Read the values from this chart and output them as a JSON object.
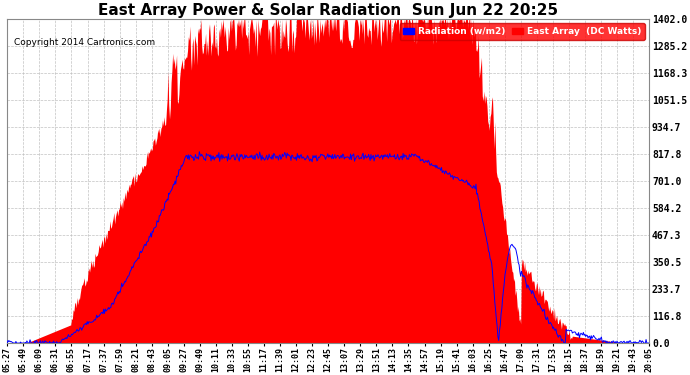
{
  "title": "East Array Power & Solar Radiation  Sun Jun 22 20:25",
  "copyright": "Copyright 2014 Cartronics.com",
  "legend_labels": [
    "Radiation (w/m2)",
    "East Array  (DC Watts)"
  ],
  "legend_colors": [
    "#0000ff",
    "#ff0000"
  ],
  "yticks": [
    0.0,
    116.8,
    233.7,
    350.5,
    467.3,
    584.2,
    701.0,
    817.8,
    934.7,
    1051.5,
    1168.3,
    1285.2,
    1402.0
  ],
  "ymax": 1402.0,
  "ymin": 0.0,
  "background_color": "#ffffff",
  "plot_bg_color": "#ffffff",
  "grid_color": "#bbbbbb",
  "red_fill_color": "#ff0000",
  "blue_line_color": "#0000ff",
  "title_fontsize": 11,
  "n_points": 820,
  "xtick_labels": [
    "05:27",
    "05:49",
    "06:09",
    "06:31",
    "06:55",
    "07:17",
    "07:37",
    "07:59",
    "08:21",
    "08:43",
    "09:05",
    "09:27",
    "09:49",
    "10:11",
    "10:33",
    "10:55",
    "11:17",
    "11:39",
    "12:01",
    "12:23",
    "12:45",
    "13:07",
    "13:29",
    "13:51",
    "14:13",
    "14:35",
    "14:57",
    "15:19",
    "15:41",
    "16:03",
    "16:25",
    "16:47",
    "17:09",
    "17:31",
    "17:53",
    "18:15",
    "18:37",
    "18:59",
    "19:21",
    "19:43",
    "20:05"
  ]
}
